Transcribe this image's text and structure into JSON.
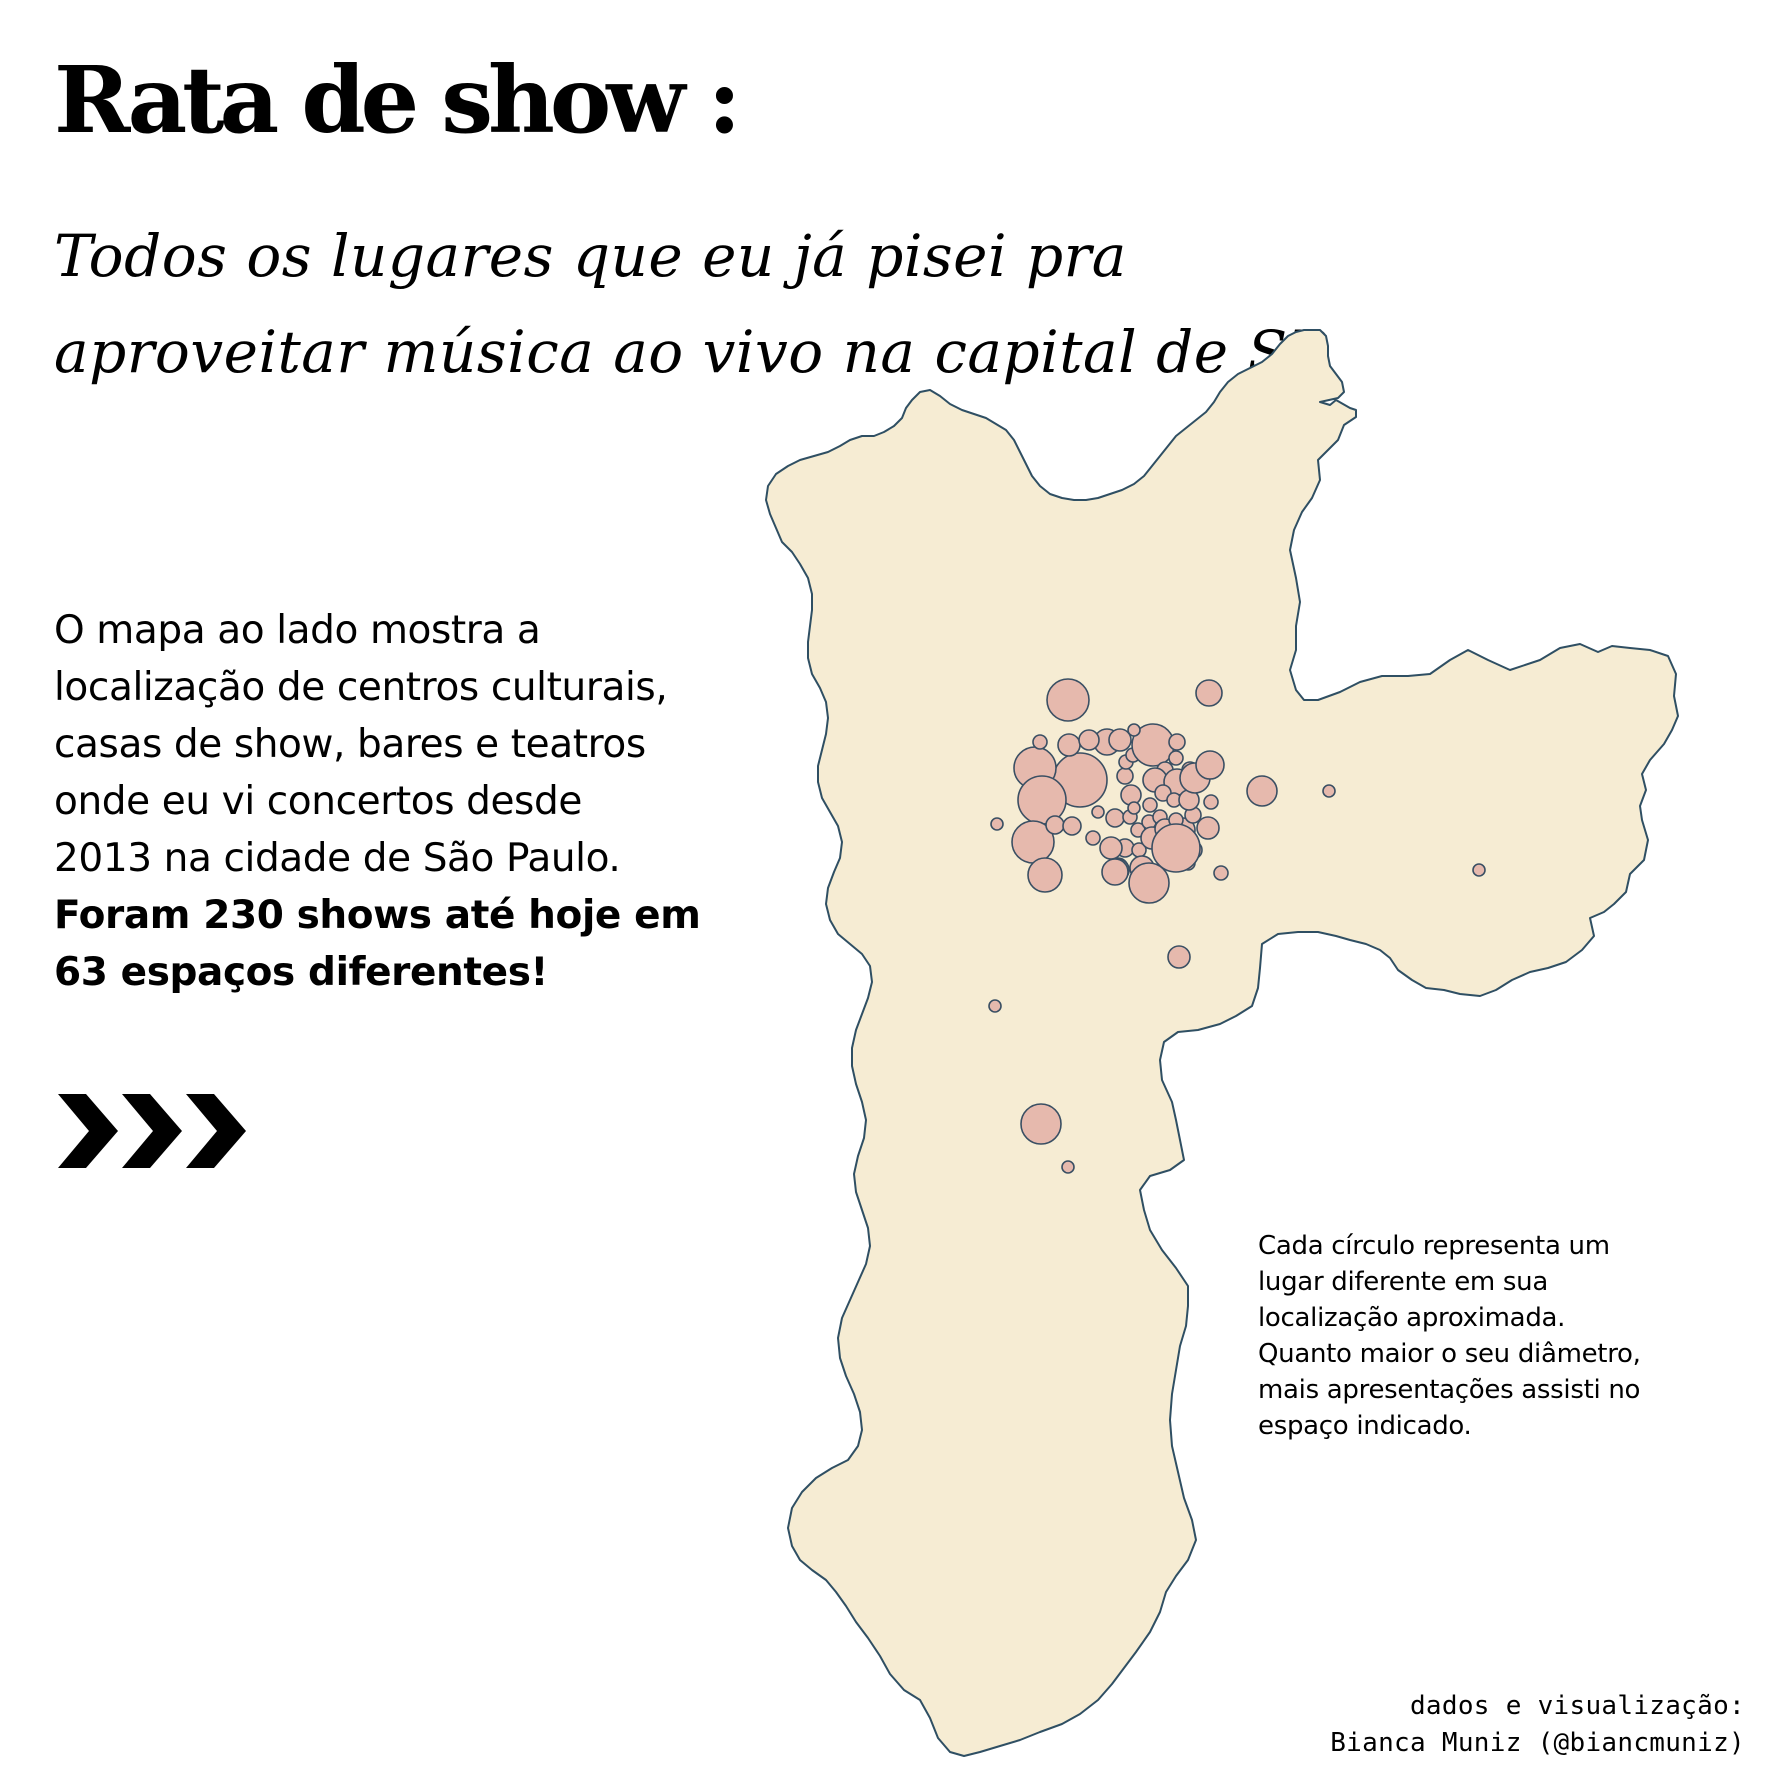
{
  "title": "Rata de show :",
  "subtitle": {
    "line1": "Todos os lugares que eu já pisei pra",
    "line2": "aproveitar música ao vivo na capital de SP"
  },
  "description": {
    "line1": "O mapa ao lado mostra a",
    "line2": "localização de centros culturais,",
    "line3": "casas de show, bares e teatros",
    "line4": "onde eu vi concertos desde",
    "line5": "2013 na cidade de São Paulo.",
    "bold_line1": "Foram 230 shows até hoje em",
    "bold_line2": "63 espaços diferentes!"
  },
  "arrows_icon": "triple-chevron-right-icon",
  "legend_note": {
    "line1": "Cada círculo representa um",
    "line2": "lugar diferente em sua",
    "line3": "localização aproximada.",
    "line4": "Quanto maior o seu diâmetro,",
    "line5": "mais apresentações assisti no",
    "line6": "espaço indicado."
  },
  "credits": {
    "line1": "dados e visualização:",
    "line2": "Bianca Muniz (@biancmuniz)"
  },
  "colors": {
    "map_fill": "#f6ecd3",
    "map_stroke": "#2f4f63",
    "circle_fill": "#e6b9ad",
    "circle_stroke": "#3a4f63",
    "text": "#000000",
    "background": "#ffffff"
  }
}
